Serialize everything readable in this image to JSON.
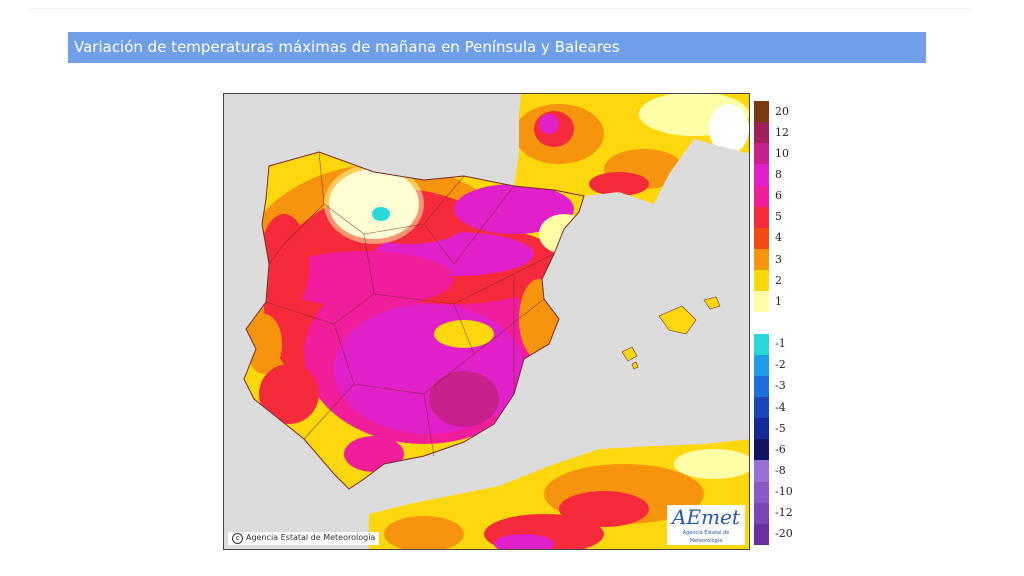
{
  "page": {
    "title": "Variación de temperaturas máximas de mañana en Península y Baleares"
  },
  "map": {
    "credit": "Agencia Estatal de Meteorología",
    "logo_text": "AEmet",
    "logo_subtext": "Agencia Estatal de Meteorología",
    "sea_color": "#dcdcdc"
  },
  "legend": {
    "items": [
      {
        "label": "20",
        "color": "#7a3a10"
      },
      {
        "label": "12",
        "color": "#a0205a"
      },
      {
        "label": "10",
        "color": "#c8208c"
      },
      {
        "label": "8",
        "color": "#e020c8"
      },
      {
        "label": "6",
        "color": "#f01e9a"
      },
      {
        "label": "5",
        "color": "#f52a3a"
      },
      {
        "label": "4",
        "color": "#f54a10"
      },
      {
        "label": "3",
        "color": "#f7940e"
      },
      {
        "label": "2",
        "color": "#fed80c"
      },
      {
        "label": "1",
        "color": "#ffffa8"
      },
      {
        "label": "",
        "color": "#ffffff"
      },
      {
        "label": "-1",
        "color": "#2ad8d8"
      },
      {
        "label": "-2",
        "color": "#1e9ee8"
      },
      {
        "label": "-3",
        "color": "#1e6ee0"
      },
      {
        "label": "-4",
        "color": "#1a48b8"
      },
      {
        "label": "-5",
        "color": "#142a96"
      },
      {
        "label": "-6",
        "color": "#141464"
      },
      {
        "label": "-8",
        "color": "#9a70d6"
      },
      {
        "label": "-10",
        "color": "#8a5ac6"
      },
      {
        "label": "-12",
        "color": "#7a46b4"
      },
      {
        "label": "-20",
        "color": "#6a30a0"
      }
    ]
  }
}
